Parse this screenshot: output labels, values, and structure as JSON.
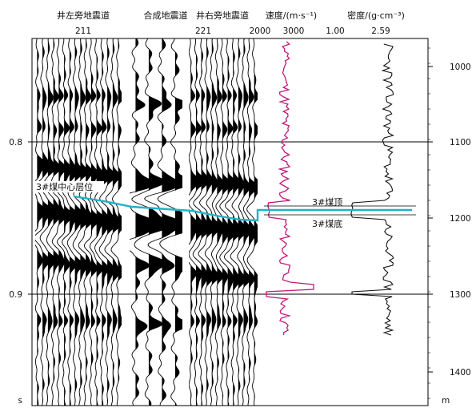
{
  "headers": {
    "left_trace": "井左旁地震道",
    "synthetic": "合成地震道",
    "right_trace": "井右旁地震道",
    "velocity": "速度/(m·s⁻¹)",
    "density": "密度/(g·cm⁻³)"
  },
  "trace_numbers": {
    "left": "211",
    "right": "221"
  },
  "velocity_ticks": [
    "2000",
    "3000"
  ],
  "density_ticks": [
    "1.00",
    "2.59"
  ],
  "time_axis": {
    "unit": "s",
    "ticks": [
      "0.8",
      "0.9"
    ]
  },
  "depth_axis": {
    "unit": "m",
    "ticks": [
      "1000",
      "1100",
      "1200",
      "1300",
      "1400"
    ]
  },
  "annotations": {
    "horizon": "3#煤中心层位",
    "coal_top": "3#煤顶",
    "coal_bottom": "3#煤底"
  },
  "colors": {
    "velocity_log": "#c2187a",
    "horizon": "#1eb3c9",
    "density_log": "#111111"
  }
}
